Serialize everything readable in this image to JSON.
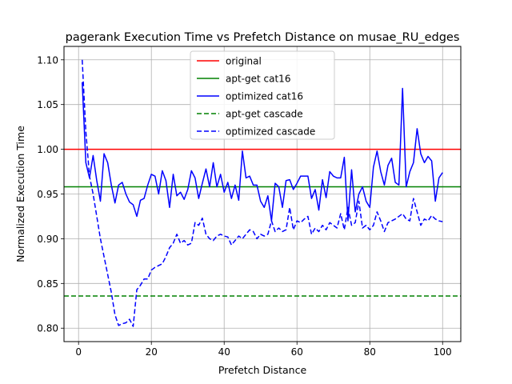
{
  "chart_data": {
    "type": "line",
    "title": "pagerank Execution Time vs Prefetch Distance on musae_RU_edges",
    "xlabel": "Prefetch Distance",
    "ylabel": "Normalized Execution Time",
    "xlim": [
      -4,
      105
    ],
    "ylim": [
      0.785,
      1.115
    ],
    "xticks": [
      0,
      20,
      40,
      60,
      80,
      100
    ],
    "yticks": [
      0.8,
      0.85,
      0.9,
      0.95,
      1.0,
      1.05,
      1.1
    ],
    "xtick_labels": [
      "0",
      "20",
      "40",
      "60",
      "80",
      "100"
    ],
    "ytick_labels": [
      "0.80",
      "0.85",
      "0.90",
      "0.95",
      "1.00",
      "1.05",
      "1.10"
    ],
    "grid": true,
    "legend_position": "upper center",
    "series": [
      {
        "name": "original",
        "color": "#ff0000",
        "style": "solid",
        "kind": "hline",
        "y": 1.0
      },
      {
        "name": "apt-get cat16",
        "color": "#008000",
        "style": "solid",
        "kind": "hline",
        "y": 0.958
      },
      {
        "name": "optimized cat16",
        "color": "#0000ff",
        "style": "solid",
        "kind": "line",
        "x": [
          1,
          2,
          3,
          4,
          5,
          6,
          7,
          8,
          9,
          10,
          11,
          12,
          13,
          14,
          15,
          16,
          17,
          18,
          19,
          20,
          21,
          22,
          23,
          24,
          25,
          26,
          27,
          28,
          29,
          30,
          31,
          32,
          33,
          34,
          35,
          36,
          37,
          38,
          39,
          40,
          41,
          42,
          43,
          44,
          45,
          46,
          47,
          48,
          49,
          50,
          51,
          52,
          53,
          54,
          55,
          56,
          57,
          58,
          59,
          60,
          61,
          62,
          63,
          64,
          65,
          66,
          67,
          68,
          69,
          70,
          71,
          72,
          73,
          74,
          75,
          76,
          77,
          78,
          79,
          80,
          81,
          82,
          83,
          84,
          85,
          86,
          87,
          88,
          89,
          90,
          91,
          92,
          93,
          94,
          95,
          96,
          97,
          98,
          99,
          100
        ],
        "values": [
          1.075,
          0.985,
          0.968,
          0.993,
          0.965,
          0.942,
          0.995,
          0.985,
          0.96,
          0.94,
          0.96,
          0.963,
          0.95,
          0.941,
          0.938,
          0.925,
          0.943,
          0.945,
          0.96,
          0.972,
          0.97,
          0.95,
          0.976,
          0.965,
          0.935,
          0.972,
          0.948,
          0.952,
          0.944,
          0.955,
          0.976,
          0.968,
          0.945,
          0.962,
          0.978,
          0.958,
          0.985,
          0.958,
          0.972,
          0.952,
          0.963,
          0.945,
          0.96,
          0.943,
          0.998,
          0.968,
          0.97,
          0.96,
          0.96,
          0.942,
          0.935,
          0.948,
          0.92,
          0.962,
          0.958,
          0.935,
          0.965,
          0.966,
          0.955,
          0.962,
          0.97,
          0.97,
          0.97,
          0.945,
          0.955,
          0.932,
          0.966,
          0.946,
          0.975,
          0.97,
          0.968,
          0.968,
          0.991,
          0.92,
          0.977,
          0.93,
          0.95,
          0.958,
          0.942,
          0.935,
          0.98,
          0.998,
          0.975,
          0.96,
          0.982,
          0.99,
          0.963,
          0.96,
          1.068,
          0.958,
          0.975,
          0.985,
          1.023,
          0.995,
          0.985,
          0.992,
          0.987,
          0.942,
          0.968,
          0.974
        ]
      },
      {
        "name": "apt-get cascade",
        "color": "#008000",
        "style": "dashed",
        "kind": "hline",
        "y": 0.836
      },
      {
        "name": "optimized cascade",
        "color": "#0000ff",
        "style": "dashed",
        "kind": "line",
        "x": [
          1,
          2,
          3,
          4,
          5,
          6,
          7,
          8,
          9,
          10,
          11,
          12,
          13,
          14,
          15,
          16,
          17,
          18,
          19,
          20,
          21,
          22,
          23,
          24,
          25,
          26,
          27,
          28,
          29,
          30,
          31,
          32,
          33,
          34,
          35,
          36,
          37,
          38,
          39,
          40,
          41,
          42,
          43,
          44,
          45,
          46,
          47,
          48,
          49,
          50,
          51,
          52,
          53,
          54,
          55,
          56,
          57,
          58,
          59,
          60,
          61,
          62,
          63,
          64,
          65,
          66,
          67,
          68,
          69,
          70,
          71,
          72,
          73,
          74,
          75,
          76,
          77,
          78,
          79,
          80,
          81,
          82,
          83,
          84,
          85,
          86,
          87,
          88,
          89,
          90,
          91,
          92,
          93,
          94,
          95,
          96,
          97,
          98,
          99,
          100
        ],
        "values": [
          1.1,
          1.02,
          0.97,
          0.95,
          0.925,
          0.9,
          0.88,
          0.86,
          0.84,
          0.815,
          0.803,
          0.805,
          0.806,
          0.81,
          0.802,
          0.843,
          0.848,
          0.855,
          0.855,
          0.865,
          0.868,
          0.87,
          0.872,
          0.88,
          0.89,
          0.895,
          0.905,
          0.895,
          0.898,
          0.893,
          0.895,
          0.918,
          0.915,
          0.923,
          0.905,
          0.9,
          0.898,
          0.903,
          0.905,
          0.903,
          0.902,
          0.893,
          0.898,
          0.903,
          0.9,
          0.905,
          0.91,
          0.908,
          0.9,
          0.905,
          0.903,
          0.905,
          0.92,
          0.908,
          0.912,
          0.908,
          0.91,
          0.935,
          0.91,
          0.92,
          0.918,
          0.922,
          0.925,
          0.905,
          0.912,
          0.908,
          0.915,
          0.91,
          0.918,
          0.915,
          0.912,
          0.928,
          0.91,
          0.935,
          0.915,
          0.918,
          0.942,
          0.912,
          0.915,
          0.91,
          0.915,
          0.93,
          0.92,
          0.908,
          0.918,
          0.92,
          0.922,
          0.925,
          0.928,
          0.922,
          0.92,
          0.945,
          0.93,
          0.915,
          0.922,
          0.92,
          0.926,
          0.922,
          0.92,
          0.919
        ]
      }
    ]
  }
}
